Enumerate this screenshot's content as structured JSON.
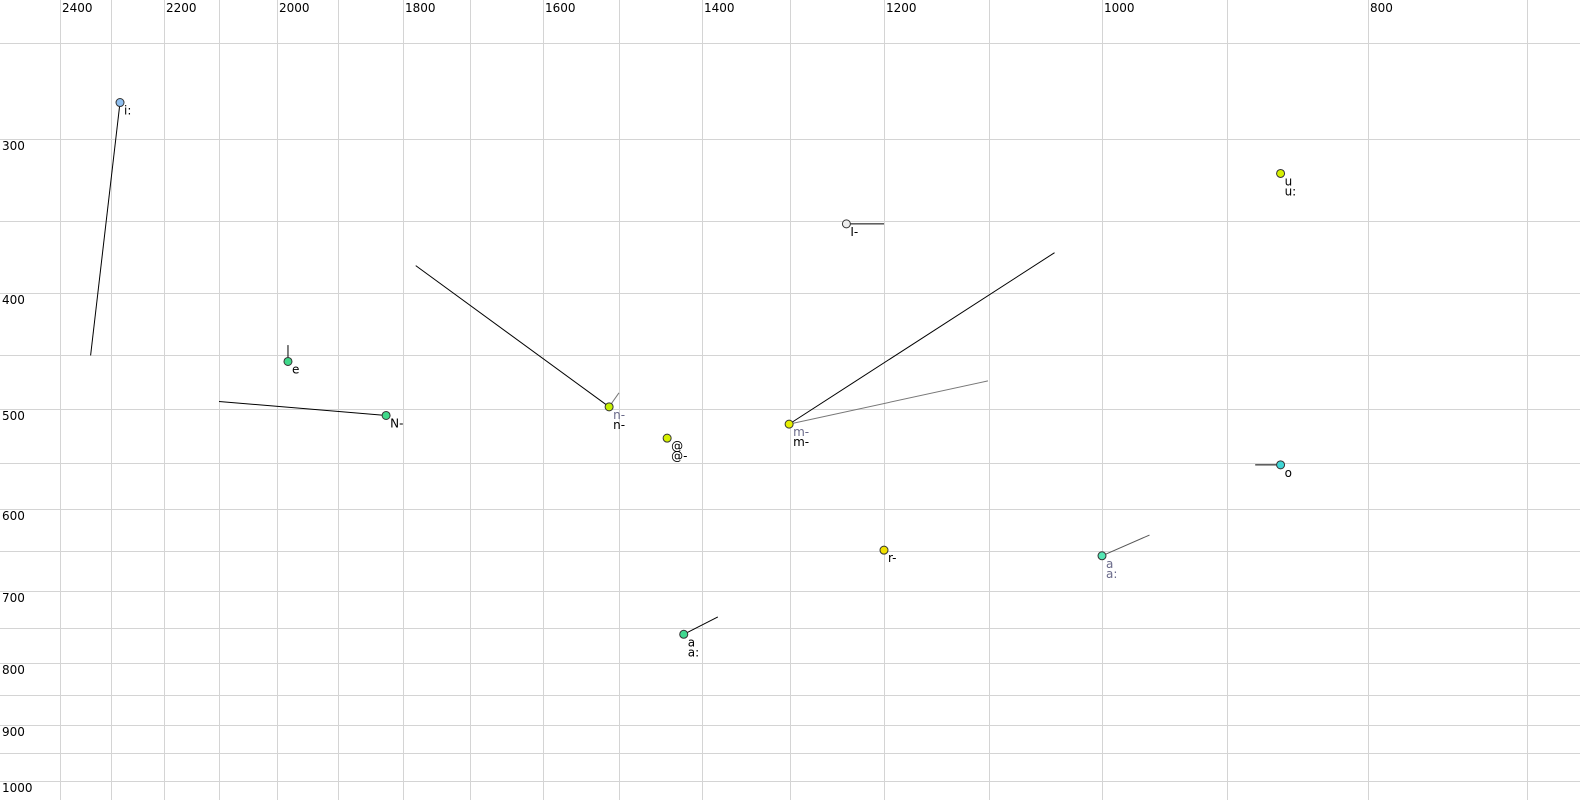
{
  "chart_data": {
    "type": "scatter",
    "title": "",
    "xlabel": "",
    "ylabel": "",
    "x_axis": {
      "position": "top",
      "reversed": true,
      "scale": "nonlinear",
      "range": [
        2400,
        700
      ],
      "tick_labels": [
        "2400",
        "2200",
        "2000",
        "1800",
        "1600",
        "1400",
        "1200",
        "1000",
        "800"
      ],
      "grid_step": 100
    },
    "y_axis": {
      "position": "left",
      "reversed": true,
      "scale": "nonlinear",
      "range": [
        250,
        1000
      ],
      "tick_labels": [
        "300",
        "400",
        "500",
        "600",
        "700",
        "800",
        "900",
        "1000"
      ],
      "grid_step": 50
    },
    "grid": true,
    "points": [
      {
        "labels": [
          "i:"
        ],
        "label_color": "#000000",
        "x": 2283,
        "y": 281,
        "color": "#8fbfef",
        "trail": [
          {
            "x": 2340,
            "y": 240,
            "color": "#000000"
          }
        ]
      },
      {
        "labels": [
          "e"
        ],
        "label_color": "#000000",
        "x": 1982,
        "y": 456,
        "color": "#3fd98a",
        "trail": [
          {
            "x": 1982,
            "y": 442,
            "color": "#000000"
          }
        ]
      },
      {
        "labels": [
          "N-"
        ],
        "label_color": "#000000",
        "x": 1826,
        "y": 506,
        "color": "#3fd98a",
        "trail": [
          {
            "x": 2100,
            "y": 493,
            "color": "#000000"
          }
        ]
      },
      {
        "labels": [
          "n-",
          "n-"
        ],
        "label_color": [
          "#6a6a8a",
          "#000000"
        ],
        "x": 1513,
        "y": 498,
        "color": "#c6f000",
        "trail": [
          {
            "x": 1781,
            "y": 381,
            "color": "#000000"
          },
          {
            "x": 1500,
            "y": 485,
            "color": "#777777"
          }
        ]
      },
      {
        "labels": [
          "@",
          "@-"
        ],
        "label_color": "#000000",
        "x": 1442,
        "y": 527,
        "color": "#d6f000",
        "trail": []
      },
      {
        "labels": [
          "m-",
          "m-"
        ],
        "label_color": [
          "#6a6a8a",
          "#000000"
        ],
        "x": 1301,
        "y": 514,
        "color": "#e6f000",
        "trail": [
          {
            "x": 1042,
            "y": 372,
            "color": "#000000"
          },
          {
            "x": 1101,
            "y": 474,
            "color": "#777777"
          }
        ]
      },
      {
        "labels": [
          "I-"
        ],
        "label_color": "#000000",
        "x": 1240,
        "y": 352,
        "color": "#eeeeee",
        "trail": [
          {
            "x": 1200,
            "y": 352,
            "color": "#000000"
          }
        ]
      },
      {
        "labels": [
          "u",
          "u:"
        ],
        "label_color": "#000000",
        "x": 862,
        "y": 321,
        "color": "#d6f000",
        "trail": []
      },
      {
        "labels": [
          "o"
        ],
        "label_color": "#000000",
        "x": 862,
        "y": 552,
        "color": "#40d6d6",
        "trail": [
          {
            "x": 880,
            "y": 552,
            "color": "#000000"
          }
        ]
      },
      {
        "labels": [
          "r-"
        ],
        "label_color": "#000000",
        "x": 1200,
        "y": 649,
        "color": "#f0e000",
        "trail": []
      },
      {
        "labels": [
          "a",
          "a:"
        ],
        "label_color": "#6a6a8a",
        "x": 1000,
        "y": 656,
        "color": "#55e6b4",
        "trail": [
          {
            "x": 962,
            "y": 631,
            "color": "#555555"
          }
        ]
      },
      {
        "labels": [
          "a",
          "a:"
        ],
        "label_color": "#000000",
        "x": 1422,
        "y": 759,
        "color": "#40d890",
        "trail": [
          {
            "x": 1382,
            "y": 735,
            "color": "#000000"
          }
        ]
      }
    ]
  }
}
